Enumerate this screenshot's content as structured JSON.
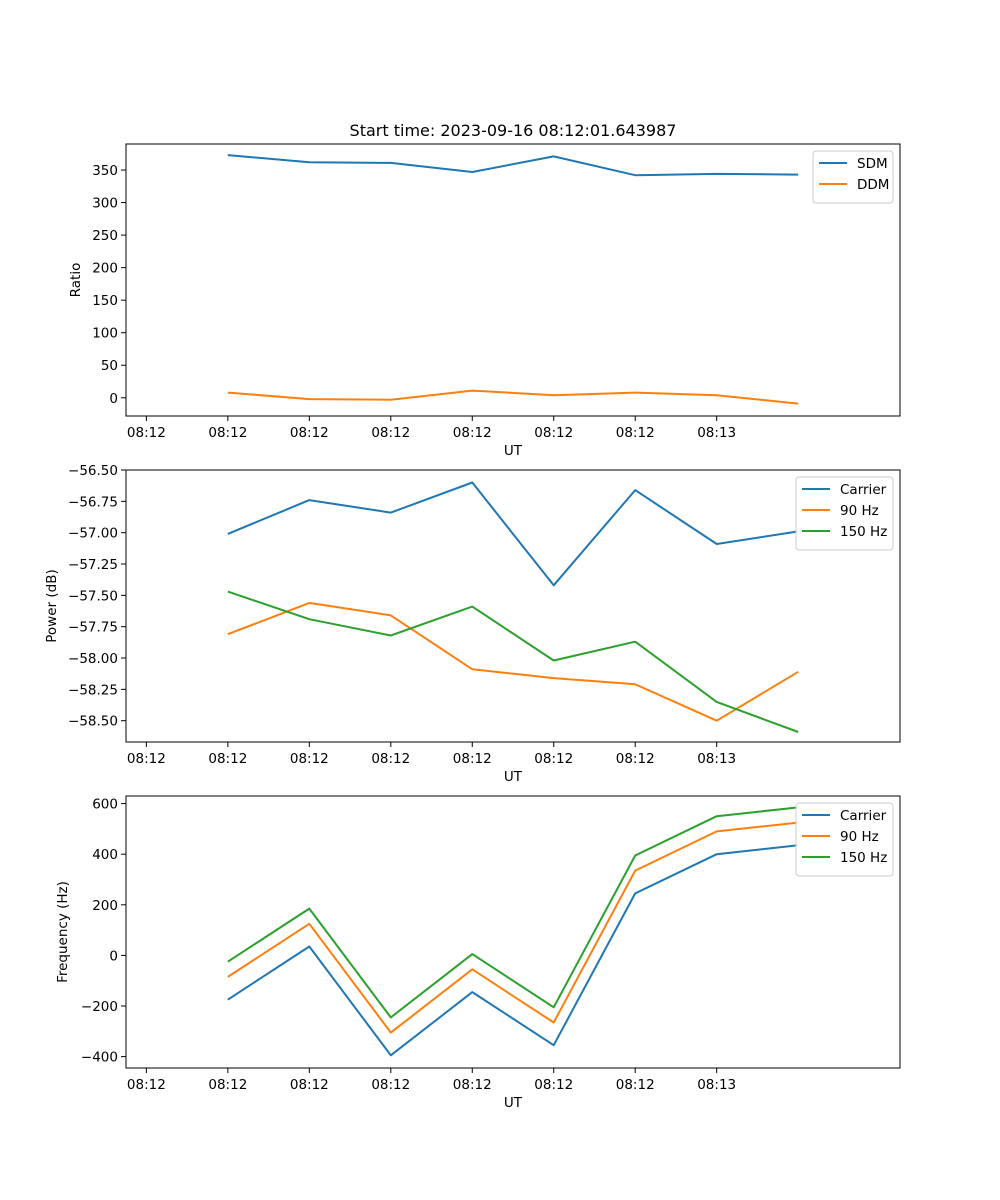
{
  "figure_title": "Start time: 2023-09-16 08:12:01.643987",
  "chart_data": [
    {
      "type": "line",
      "title": "Start time: 2023-09-16 08:12:01.643987",
      "xlabel": "UT",
      "ylabel": "Ratio",
      "xtick_labels": [
        "08:12",
        "08:12",
        "08:12",
        "08:12",
        "08:12",
        "08:12",
        "08:12",
        "08:13"
      ],
      "xlim": [
        -0.25,
        9.25
      ],
      "x": [
        1,
        2,
        3,
        4,
        5,
        6,
        7,
        8
      ],
      "ylim": [
        -28,
        390
      ],
      "yticks": [
        0,
        50,
        100,
        150,
        200,
        250,
        300,
        350
      ],
      "ytick_labels": [
        "0",
        "50",
        "100",
        "150",
        "200",
        "250",
        "300",
        "350"
      ],
      "legend": "top-right",
      "series": [
        {
          "name": "SDM",
          "color": "#1f77b4",
          "values": [
            373,
            362,
            361,
            347,
            371,
            342,
            344,
            343
          ]
        },
        {
          "name": "DDM",
          "color": "#ff7f0e",
          "values": [
            8,
            -2,
            -3,
            11,
            4,
            8,
            4,
            -9
          ]
        }
      ]
    },
    {
      "type": "line",
      "title": "",
      "xlabel": "UT",
      "ylabel": "Power (dB)",
      "xtick_labels": [
        "08:12",
        "08:12",
        "08:12",
        "08:12",
        "08:12",
        "08:12",
        "08:12",
        "08:13"
      ],
      "xlim": [
        -0.25,
        9.25
      ],
      "x": [
        1,
        2,
        3,
        4,
        5,
        6,
        7,
        8
      ],
      "ylim": [
        -58.67,
        -56.5
      ],
      "yticks": [
        -56.5,
        -56.75,
        -57.0,
        -57.25,
        -57.5,
        -57.75,
        -58.0,
        -58.25,
        -58.5
      ],
      "ytick_labels": [
        "−56.50",
        "−56.75",
        "−57.00",
        "−57.25",
        "−57.50",
        "−57.75",
        "−58.00",
        "−58.25",
        "−58.50"
      ],
      "legend": "top-right",
      "series": [
        {
          "name": "Carrier",
          "color": "#1f77b4",
          "values": [
            -57.01,
            -56.74,
            -56.84,
            -56.6,
            -57.42,
            -56.66,
            -57.09,
            -56.99
          ]
        },
        {
          "name": "90 Hz",
          "color": "#ff7f0e",
          "values": [
            -57.81,
            -57.56,
            -57.66,
            -58.09,
            -58.16,
            -58.21,
            -58.5,
            -58.11
          ]
        },
        {
          "name": "150 Hz",
          "color": "#2ca02c",
          "values": [
            -57.47,
            -57.69,
            -57.82,
            -57.59,
            -58.02,
            -57.87,
            -58.35,
            -58.59
          ]
        }
      ]
    },
    {
      "type": "line",
      "title": "",
      "xlabel": "UT",
      "ylabel": "Frequency (Hz)",
      "xtick_labels": [
        "08:12",
        "08:12",
        "08:12",
        "08:12",
        "08:12",
        "08:12",
        "08:12",
        "08:13"
      ],
      "xlim": [
        -0.25,
        9.25
      ],
      "x": [
        1,
        2,
        3,
        4,
        5,
        6,
        7,
        8
      ],
      "ylim": [
        -445,
        630
      ],
      "yticks": [
        -400,
        -200,
        0,
        200,
        400,
        600
      ],
      "ytick_labels": [
        "−400",
        "−200",
        "0",
        "200",
        "400",
        "600"
      ],
      "legend": "top-right",
      "series": [
        {
          "name": "Carrier",
          "color": "#1f77b4",
          "values": [
            -175,
            35,
            -395,
            -145,
            -355,
            245,
            400,
            435
          ]
        },
        {
          "name": "90 Hz",
          "color": "#ff7f0e",
          "values": [
            -85,
            125,
            -305,
            -55,
            -265,
            335,
            490,
            525
          ]
        },
        {
          "name": "150 Hz",
          "color": "#2ca02c",
          "values": [
            -25,
            185,
            -245,
            5,
            -205,
            395,
            550,
            585
          ]
        }
      ]
    }
  ]
}
